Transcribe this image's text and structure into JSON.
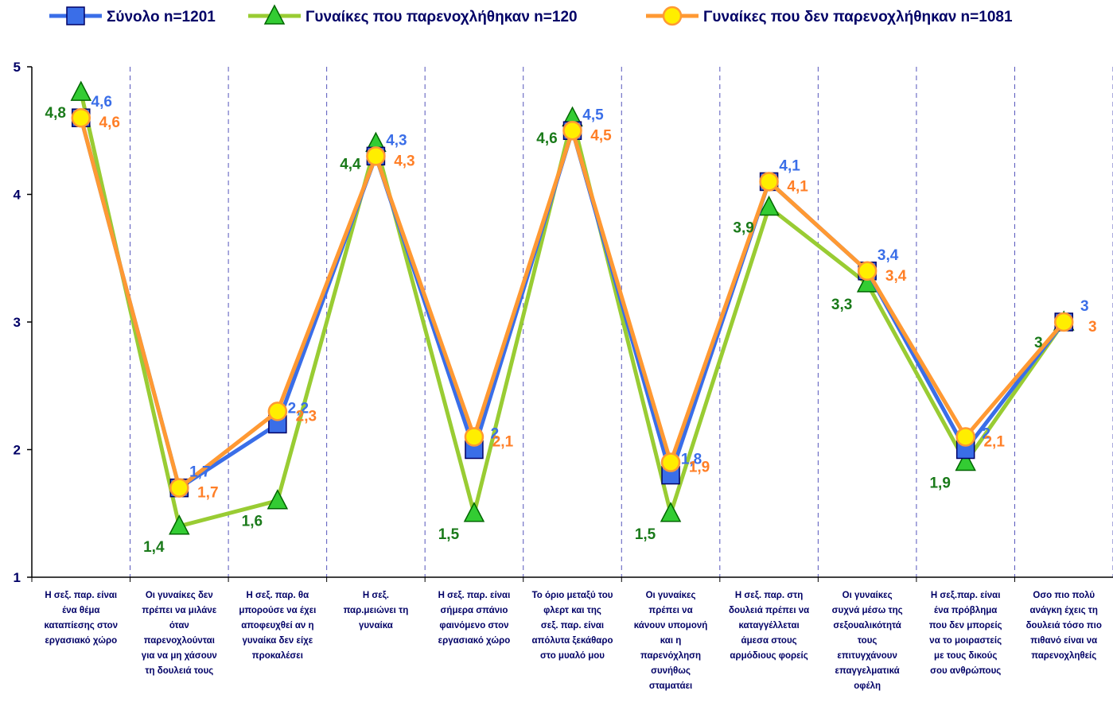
{
  "chart_data": {
    "type": "line",
    "categories": [
      "Η σεξ. παρ. είναι\nένα θέμα\nκαταπίεσης στον\nεργασιακό χώρο",
      "Οι γυναίκες δεν\nπρέπει να μιλάνε\nόταν\nπαρενοχλούνται\nγια να μη χάσουν\nτη δουλειά τους",
      "Η σεξ. παρ. θα\nμπορούσε να έχει\nαποφευχθεί αν η\nγυναίκα δεν είχε\nπροκαλέσει",
      "Η σεξ.\nπαρ.μειώνει τη\nγυναίκα",
      "Η σεξ. παρ. είναι\nσήμερα σπάνιο\nφαινόμενο στον\nεργασιακό χώρο",
      "Το όριο μεταξύ του\nφλερτ και της\nσεξ. παρ. είναι\nαπόλυτα ξεκάθαρο\nστο μυαλό μου",
      "Οι γυναίκες\nπρέπει να\nκάνουν υπομονή\nκαι η\nπαρενόχληση\nσυνήθως\nσταματάει",
      "Η σεξ. παρ. στη\nδουλειά πρέπει να\nκαταγγέλλεται\nάμεσα στους\nαρμόδιους φορείς",
      "Οι γυναίκες\nσυχνά μέσω της\nσεξουαλικότητά\nτους\nεπιτυγχάνουν\nεπαγγελματικά\nοφέλη",
      "Η σεξ.παρ. είναι\nένα πρόβλημα\nπου δεν μπορείς\nνα το μοιραστείς\nμε τους δικούς\nσου ανθρώπους",
      "Οσο πιο πολύ\nανάγκη έχεις τη\nδουλειά τόσο πιο\nπιθανό είναι να\nπαρενοχληθείς"
    ],
    "series": [
      {
        "name": "Σύνολο n=1201",
        "color": "#3a6ee8",
        "marker": "square",
        "values": [
          4.6,
          1.7,
          2.2,
          4.3,
          2,
          4.5,
          1.8,
          4.1,
          3.4,
          2,
          3
        ],
        "value_labels": [
          "4,6",
          "1,7",
          "2,2",
          "4,3",
          "2",
          "4,5",
          "1,8",
          "4,1",
          "3,4",
          "2",
          "3"
        ]
      },
      {
        "name": "Γυναίκες που παρενοχλήθηκαν n=120",
        "color": "#99cc33",
        "marker": "triangle",
        "values": [
          4.8,
          1.4,
          1.6,
          4.4,
          1.5,
          4.6,
          1.5,
          3.9,
          3.3,
          1.9,
          3
        ],
        "value_labels": [
          "4,8",
          "1,4",
          "1,6",
          "4,4",
          "1,5",
          "4,6",
          "1,5",
          "3,9",
          "3,3",
          "1,9",
          "3"
        ]
      },
      {
        "name": "Γυναίκες που δεν παρενοχλήθηκαν n=1081",
        "color": "#ff9933",
        "marker": "circle",
        "values": [
          4.6,
          1.7,
          2.3,
          4.3,
          2.1,
          4.5,
          1.9,
          4.1,
          3.4,
          2.1,
          3
        ],
        "value_labels": [
          "4,6",
          "1,7",
          "2,3",
          "4,3",
          "2,1",
          "4,5",
          "1,9",
          "4,1",
          "3,4",
          "2,1",
          "3"
        ]
      }
    ],
    "ylim": [
      1,
      5
    ],
    "yticks": [
      1,
      2,
      3,
      4,
      5
    ],
    "grid": true
  }
}
